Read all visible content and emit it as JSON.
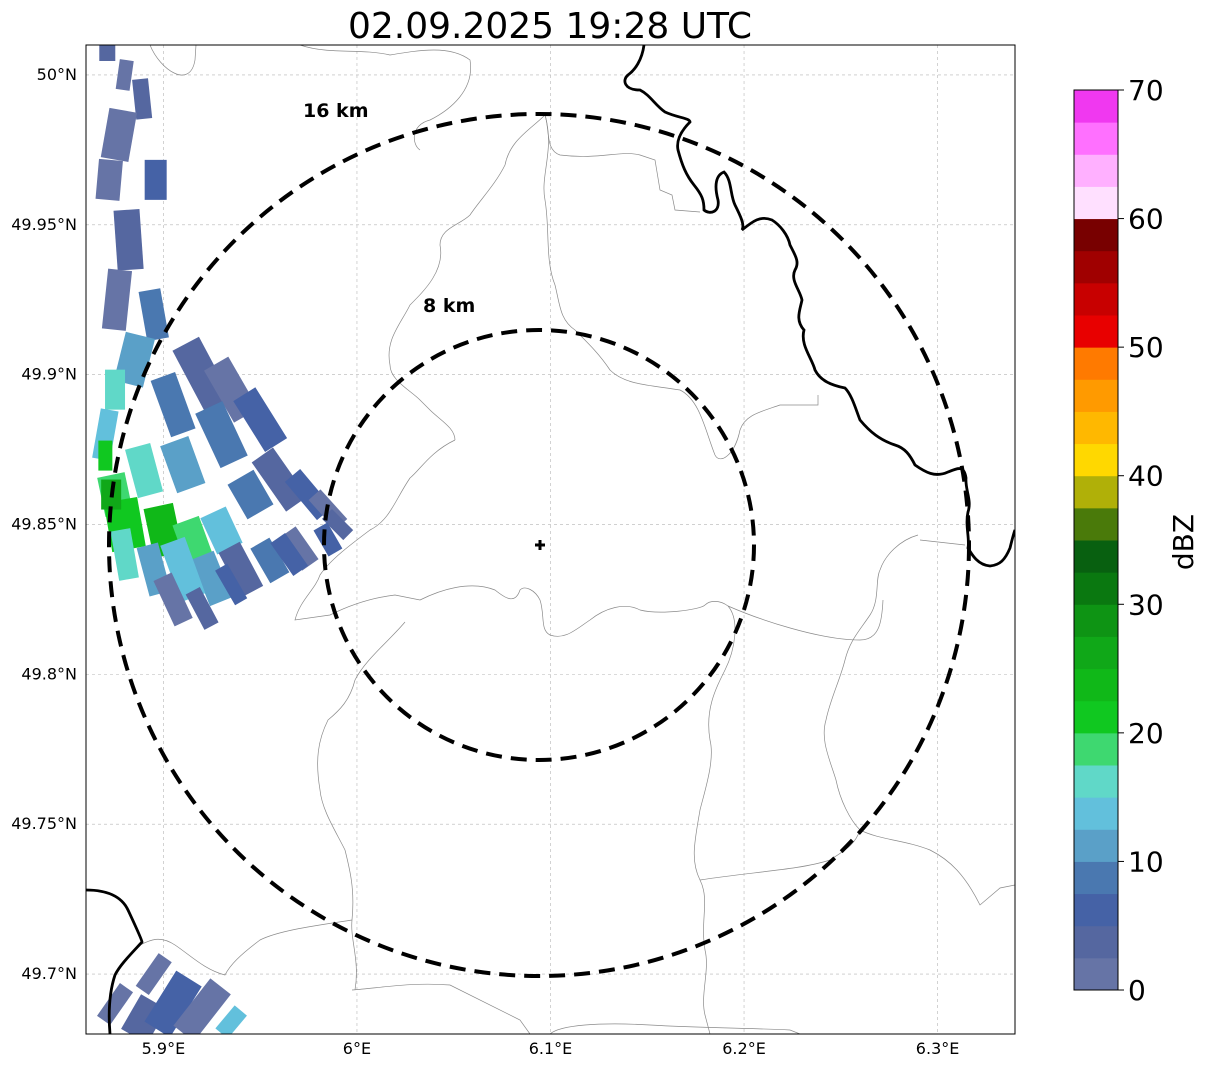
{
  "title": "02.09.2025 19:28 UTC",
  "map": {
    "lon_range": [
      5.86,
      6.34
    ],
    "lat_range": [
      49.68,
      50.01
    ],
    "x_ticks": [
      {
        "value": 5.9,
        "label": "5.9°E"
      },
      {
        "value": 6.0,
        "label": "6°E"
      },
      {
        "value": 6.1,
        "label": "6.1°E"
      },
      {
        "value": 6.2,
        "label": "6.2°E"
      },
      {
        "value": 6.3,
        "label": "6.3°E"
      }
    ],
    "y_ticks": [
      {
        "value": 50.0,
        "label": "50°N"
      },
      {
        "value": 49.95,
        "label": "49.95°N"
      },
      {
        "value": 49.9,
        "label": "49.9°N"
      },
      {
        "value": 49.85,
        "label": "49.85°N"
      },
      {
        "value": 49.8,
        "label": "49.8°N"
      },
      {
        "value": 49.75,
        "label": "49.75°N"
      },
      {
        "value": 49.7,
        "label": "49.7°N"
      }
    ],
    "grid": true,
    "radar_site": {
      "lon": 6.095,
      "lat": 49.843
    },
    "rings": [
      {
        "radius_km": 16,
        "label": "16 km"
      },
      {
        "radius_km": 8,
        "label": "8 km"
      }
    ]
  },
  "colorbar": {
    "label": "dBZ",
    "min": 0,
    "max": 70,
    "step": 2.5,
    "tick_values": [
      0,
      10,
      20,
      30,
      40,
      50,
      60,
      70
    ],
    "tick_labels": [
      "0",
      "10",
      "20",
      "30",
      "40",
      "50",
      "60",
      "70"
    ],
    "colors": [
      "#6674a6",
      "#5567a0",
      "#4562a6",
      "#4a78b0",
      "#5aa0c8",
      "#62c0dc",
      "#60d8c8",
      "#3ed870",
      "#10c820",
      "#10b818",
      "#10a818",
      "#0e9414",
      "#0a7810",
      "#086010",
      "#4a7a0a",
      "#b0b008",
      "#ffd800",
      "#ffb800",
      "#ff9a00",
      "#ff7a00",
      "#e80000",
      "#c80000",
      "#a00000",
      "#780000",
      "#ffe0ff",
      "#ffb0ff",
      "#ff70ff",
      "#f038f0"
    ]
  },
  "chart_data": {
    "type": "heatmap",
    "title": "02.09.2025 19:28 UTC",
    "xlabel": "",
    "ylabel": "",
    "colorbar_label": "dBZ",
    "x_range_deg_e": [
      5.86,
      6.34
    ],
    "y_range_deg_n": [
      49.68,
      50.01
    ],
    "echoes": [
      {
        "region": "northwest storm band",
        "lon_range": [
          5.86,
          5.98
        ],
        "lat_range": [
          49.82,
          50.01
        ],
        "dbz_range": [
          0,
          22
        ]
      },
      {
        "region": "southwest corner",
        "lon_range": [
          5.86,
          5.94
        ],
        "lat_range": [
          49.68,
          49.71
        ],
        "dbz_range": [
          0,
          12
        ]
      }
    ]
  }
}
